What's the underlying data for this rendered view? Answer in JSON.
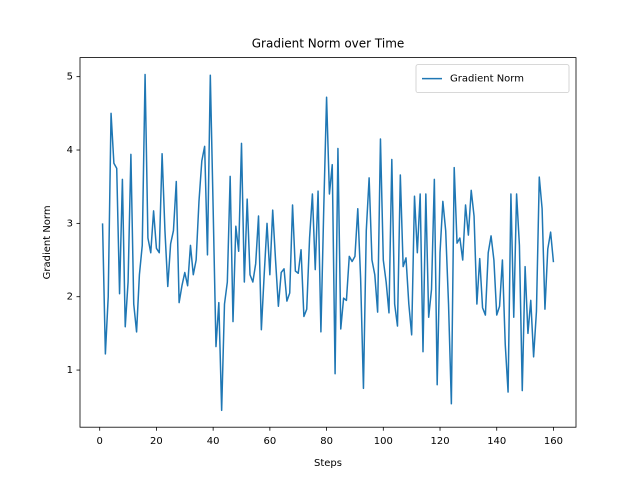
{
  "chart_data": {
    "type": "line",
    "title": "Gradient Norm over Time",
    "xlabel": "Steps",
    "ylabel": "Gradient Norm",
    "x": [
      1,
      2,
      3,
      4,
      5,
      6,
      7,
      8,
      9,
      10,
      11,
      12,
      13,
      14,
      15,
      16,
      17,
      18,
      19,
      20,
      21,
      22,
      23,
      24,
      25,
      26,
      27,
      28,
      29,
      30,
      31,
      32,
      33,
      34,
      35,
      36,
      37,
      38,
      39,
      40,
      41,
      42,
      43,
      44,
      45,
      46,
      47,
      48,
      49,
      50,
      51,
      52,
      53,
      54,
      55,
      56,
      57,
      58,
      59,
      60,
      61,
      62,
      63,
      64,
      65,
      66,
      67,
      68,
      69,
      70,
      71,
      72,
      73,
      74,
      75,
      76,
      77,
      78,
      79,
      80,
      81,
      82,
      83,
      84,
      85,
      86,
      87,
      88,
      89,
      90,
      91,
      92,
      93,
      94,
      95,
      96,
      97,
      98,
      99,
      100,
      101,
      102,
      103,
      104,
      105,
      106,
      107,
      108,
      109,
      110,
      111,
      112,
      113,
      114,
      115,
      116,
      117,
      118,
      119,
      120,
      121,
      122,
      123,
      124,
      125,
      126,
      127,
      128,
      129,
      130,
      131,
      132,
      133,
      134,
      135,
      136,
      137,
      138,
      139,
      140,
      141,
      142,
      143,
      144,
      145,
      146,
      147,
      148,
      149,
      150,
      151,
      152,
      153,
      154,
      155,
      156,
      157,
      158,
      159,
      160
    ],
    "series": [
      {
        "name": "Gradient Norm",
        "color": "#1f77b4",
        "values": [
          3.0,
          1.22,
          2.0,
          4.5,
          3.82,
          3.75,
          2.04,
          3.6,
          1.59,
          2.2,
          3.94,
          1.9,
          1.52,
          2.3,
          2.7,
          5.03,
          2.8,
          2.6,
          3.17,
          2.66,
          2.6,
          3.95,
          2.9,
          2.14,
          2.72,
          2.9,
          3.57,
          1.92,
          2.15,
          2.33,
          2.15,
          2.7,
          2.3,
          2.5,
          3.3,
          3.85,
          4.05,
          2.57,
          5.02,
          3.2,
          1.32,
          1.92,
          0.45,
          1.9,
          2.2,
          3.64,
          1.66,
          2.96,
          2.62,
          4.09,
          2.2,
          3.33,
          2.3,
          2.2,
          2.45,
          3.1,
          1.55,
          2.3,
          3.0,
          2.3,
          3.18,
          2.5,
          1.87,
          2.33,
          2.38,
          1.94,
          2.05,
          3.25,
          2.35,
          2.32,
          2.64,
          1.73,
          1.83,
          2.8,
          3.4,
          2.37,
          3.44,
          1.52,
          3.2,
          4.72,
          3.4,
          3.8,
          0.95,
          4.02,
          1.56,
          1.98,
          1.95,
          2.55,
          2.48,
          2.55,
          3.2,
          2.25,
          0.75,
          2.9,
          3.62,
          2.5,
          2.3,
          1.79,
          4.15,
          2.5,
          2.2,
          1.78,
          3.87,
          1.9,
          1.6,
          3.66,
          2.41,
          2.53,
          1.9,
          1.48,
          3.37,
          2.6,
          3.4,
          1.25,
          3.4,
          1.72,
          2.1,
          3.6,
          0.8,
          2.6,
          3.3,
          2.9,
          1.9,
          0.54,
          3.76,
          2.73,
          2.8,
          2.5,
          3.25,
          2.84,
          3.45,
          3.1,
          1.9,
          2.52,
          1.85,
          1.75,
          2.6,
          2.83,
          2.5,
          1.75,
          1.87,
          2.5,
          1.35,
          0.7,
          3.4,
          1.72,
          3.4,
          2.7,
          0.72,
          2.41,
          1.5,
          1.95,
          1.18,
          1.8,
          3.63,
          3.2,
          1.83,
          2.65,
          2.88,
          2.47
        ]
      }
    ],
    "xlim": [
      -6.95,
      167.95
    ],
    "xticks": [
      0,
      20,
      40,
      60,
      80,
      100,
      120,
      140,
      160
    ],
    "ylim": [
      0.221,
      5.26
    ],
    "yticks": [
      1,
      2,
      3,
      4,
      5
    ],
    "grid": false,
    "legend": "upper right"
  }
}
